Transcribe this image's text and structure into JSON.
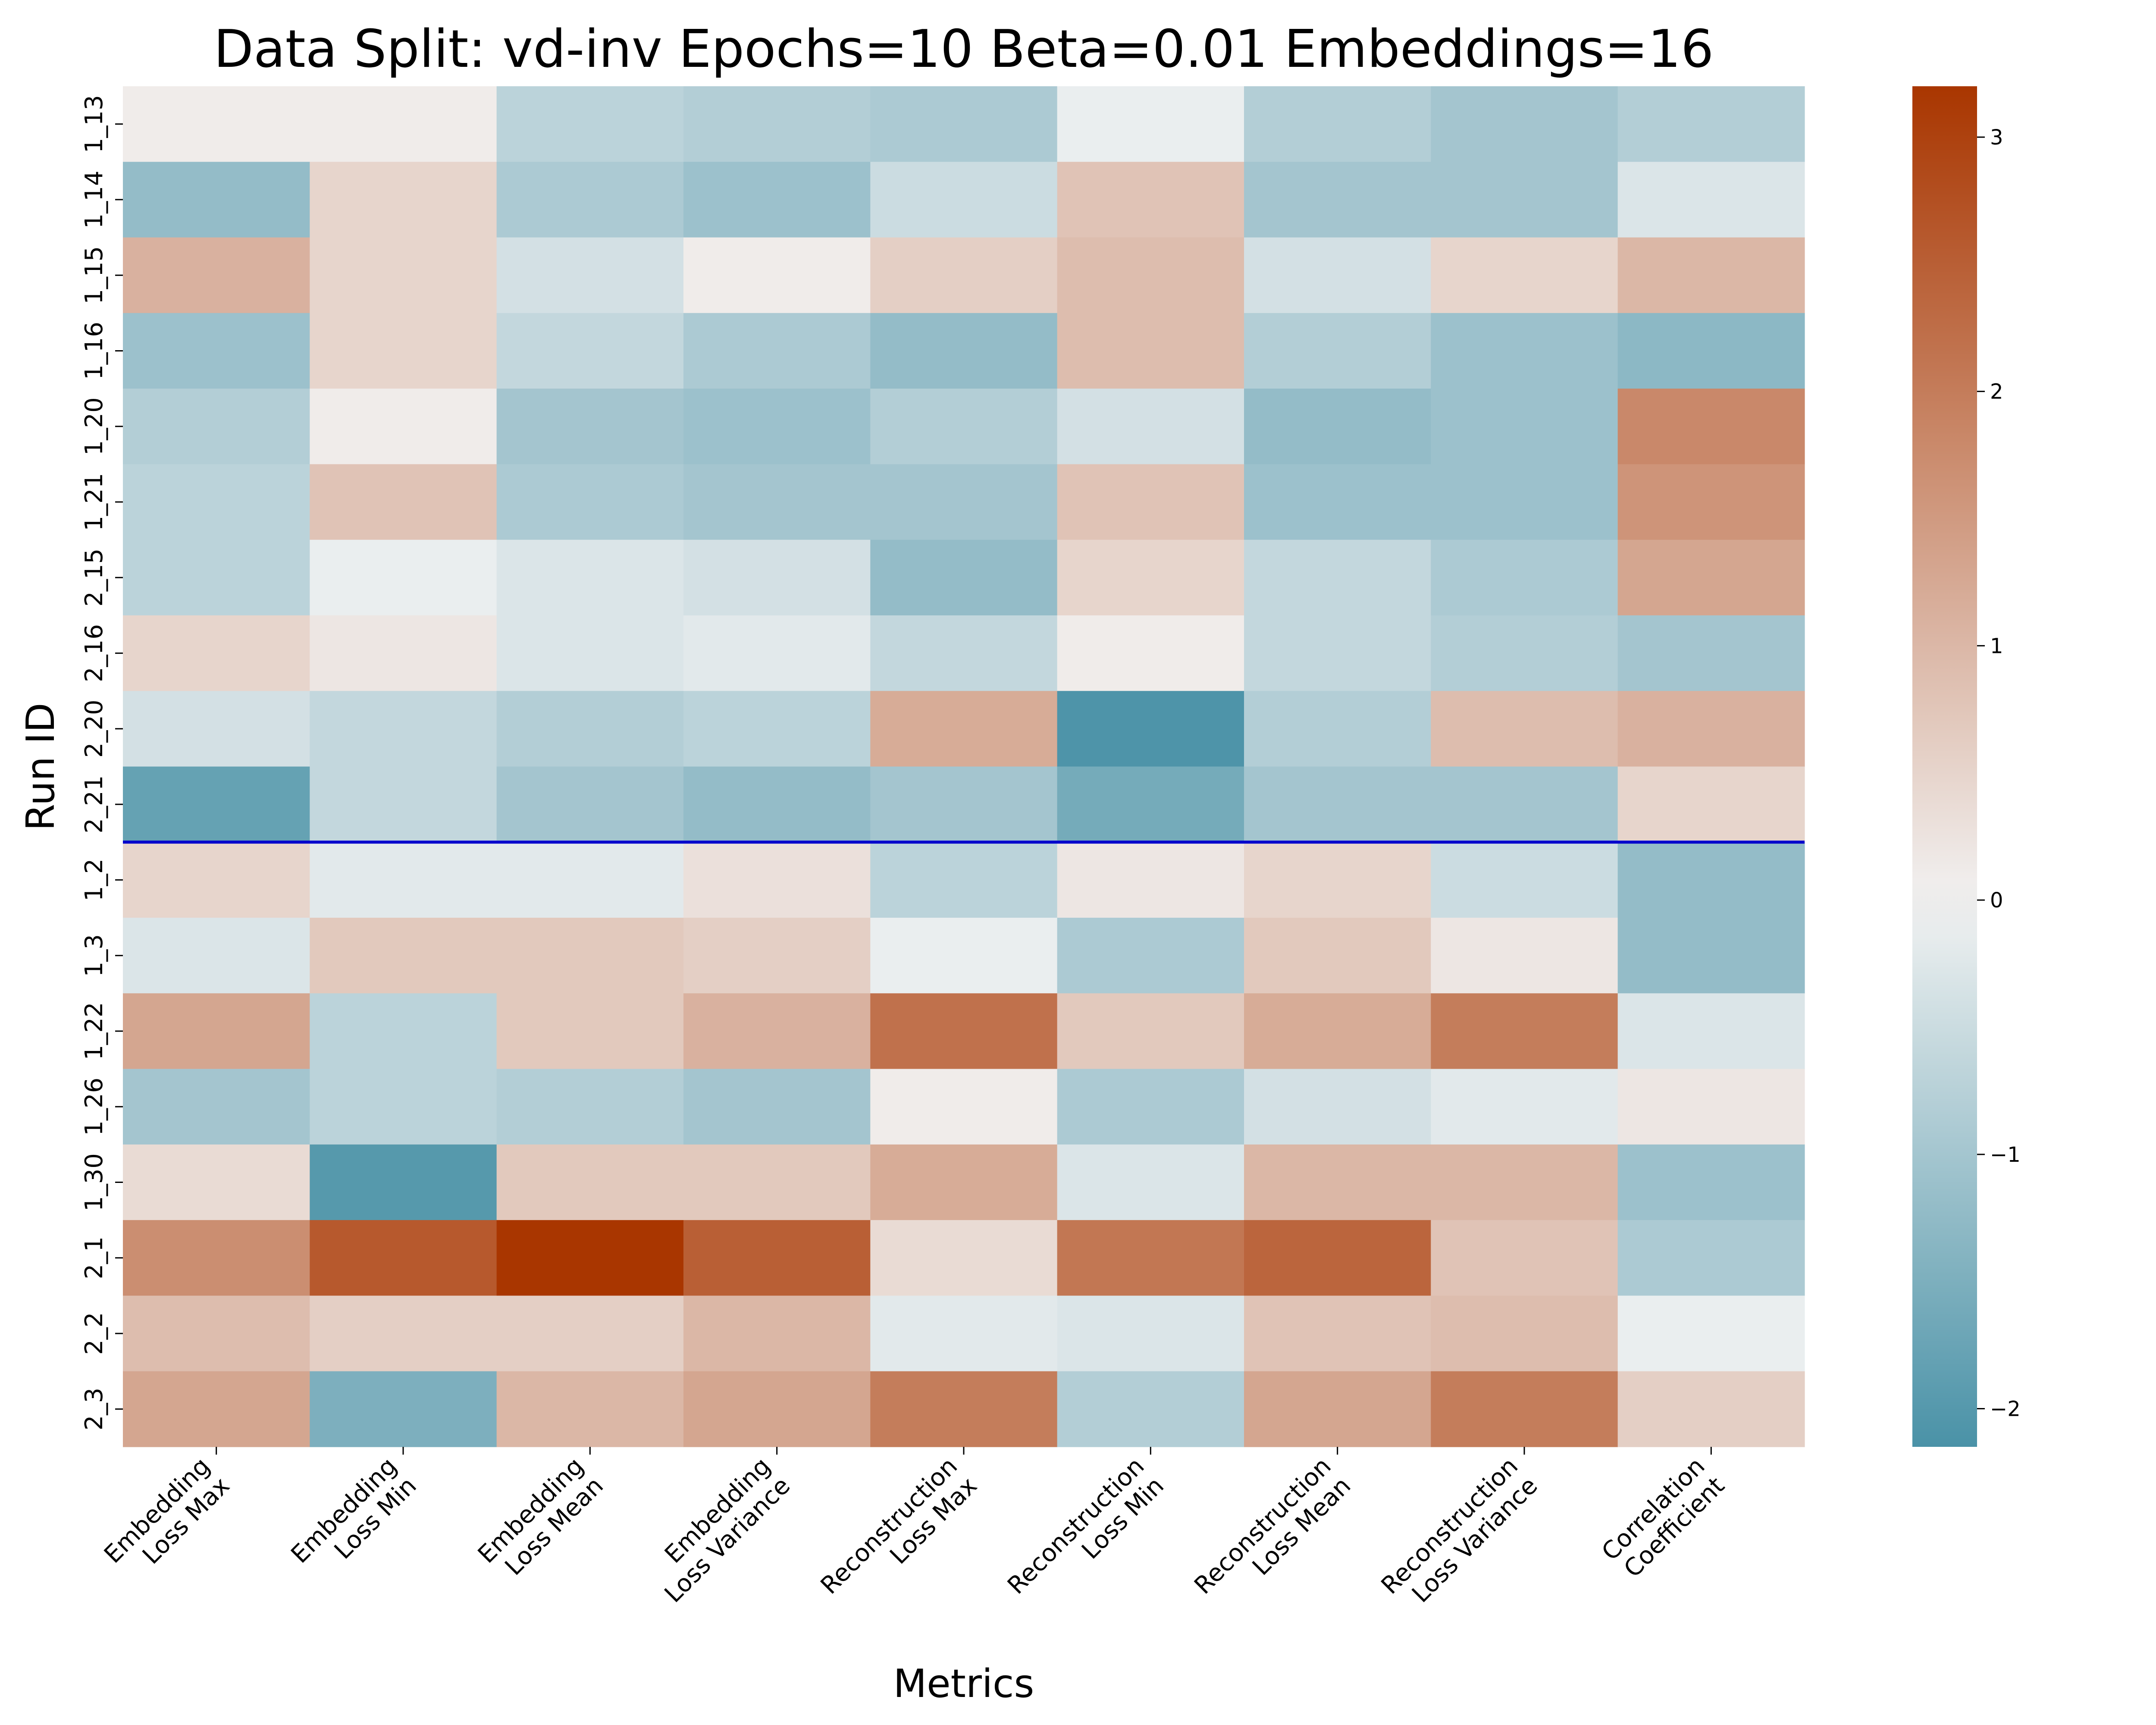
{
  "chart_data": {
    "type": "heatmap",
    "title": "Data Split: vd-inv Epochs=10 Beta=0.01 Embeddings=16",
    "xlabel": "Metrics",
    "ylabel": "Run ID",
    "columns": [
      [
        "Embedding",
        "Loss Max"
      ],
      [
        "Embedding",
        "Loss Min"
      ],
      [
        "Embedding",
        "Loss Mean"
      ],
      [
        "Embedding",
        "Loss Variance"
      ],
      [
        "Reconstruction",
        "Loss Max"
      ],
      [
        "Reconstruction",
        "Loss Min"
      ],
      [
        "Reconstruction",
        "Loss Mean"
      ],
      [
        "Reconstruction",
        "Loss Variance"
      ],
      [
        "Correlation",
        "Coefficient"
      ]
    ],
    "rows": [
      "1_13",
      "1_14",
      "1_15",
      "1_16",
      "1_20",
      "1_21",
      "2_15",
      "2_16",
      "2_20",
      "2_21",
      "1_2",
      "1_3",
      "1_22",
      "1_26",
      "1_30",
      "2_1",
      "2_2",
      "2_3"
    ],
    "values": [
      [
        0.1,
        0.1,
        -0.7,
        -0.8,
        -0.9,
        -0.1,
        -0.8,
        -1.0,
        -0.8
      ],
      [
        -1.2,
        0.5,
        -0.9,
        -1.1,
        -0.5,
        0.8,
        -1.0,
        -1.0,
        -0.3
      ],
      [
        1.1,
        0.5,
        -0.4,
        0.1,
        0.6,
        0.9,
        -0.4,
        0.5,
        1.0
      ],
      [
        -1.1,
        0.5,
        -0.6,
        -0.9,
        -1.2,
        0.9,
        -0.8,
        -1.1,
        -1.3
      ],
      [
        -0.8,
        0.1,
        -1.0,
        -1.1,
        -0.8,
        -0.4,
        -1.2,
        -1.1,
        1.8
      ],
      [
        -0.7,
        0.8,
        -0.9,
        -1.0,
        -1.0,
        0.8,
        -1.1,
        -1.1,
        1.6
      ],
      [
        -0.7,
        -0.1,
        -0.3,
        -0.4,
        -1.2,
        0.5,
        -0.6,
        -0.9,
        1.3
      ],
      [
        0.5,
        0.2,
        -0.3,
        -0.2,
        -0.6,
        0.1,
        -0.6,
        -0.8,
        -1.0
      ],
      [
        -0.4,
        -0.6,
        -0.8,
        -0.7,
        1.2,
        -2.1,
        -0.8,
        0.9,
        1.1
      ],
      [
        -1.8,
        -0.6,
        -1.0,
        -1.2,
        -1.0,
        -1.6,
        -1.0,
        -1.0,
        0.5
      ],
      [
        0.5,
        -0.2,
        -0.2,
        0.3,
        -0.7,
        0.2,
        0.5,
        -0.5,
        -1.2
      ],
      [
        -0.3,
        0.7,
        0.7,
        0.6,
        -0.1,
        -0.9,
        0.7,
        0.2,
        -1.2
      ],
      [
        1.3,
        -0.7,
        0.7,
        1.1,
        2.2,
        0.7,
        1.2,
        2.0,
        -0.3
      ],
      [
        -1.0,
        -0.7,
        -0.8,
        -1.0,
        0.1,
        -0.9,
        -0.4,
        -0.2,
        0.2
      ],
      [
        0.4,
        -2.0,
        0.7,
        0.7,
        1.2,
        -0.3,
        1.0,
        1.0,
        -1.1
      ],
      [
        1.7,
        2.6,
        3.2,
        2.5,
        0.4,
        2.1,
        2.4,
        0.8,
        -0.9
      ],
      [
        0.9,
        0.6,
        0.6,
        1.0,
        -0.2,
        -0.3,
        0.8,
        0.9,
        -0.1
      ],
      [
        1.3,
        -1.5,
        1.0,
        1.3,
        2.0,
        -0.8,
        1.3,
        2.0,
        0.6
      ]
    ],
    "vmin": -2.15,
    "vmax": 3.2,
    "colorbar_ticks": [
      -2,
      -1,
      0,
      1,
      2,
      3
    ],
    "colorbar_tick_labels": [
      "−2",
      "−1",
      "0",
      "1",
      "2",
      "3"
    ],
    "separator_after_row": "2_21",
    "separator_color": "#0000cc",
    "colormap": {
      "low": "#4a92a7",
      "mid": "#f2f2f2",
      "high": "#a93600"
    }
  }
}
